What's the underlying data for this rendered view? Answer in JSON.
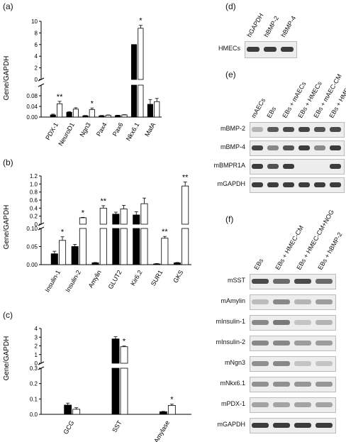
{
  "panel_labels": {
    "a": "(a)",
    "b": "(b)",
    "c": "(c)",
    "d": "(d)",
    "e": "(e)",
    "f": "(f)"
  },
  "chart_data": [
    {
      "type": "bar",
      "panel": "a",
      "ylabel": "Gene/GAPDH",
      "categories": [
        "PDX-1",
        "NeuroD1",
        "Ngn3",
        "Pax4",
        "Pax6",
        "Nkx6.1",
        "MafA"
      ],
      "series": [
        {
          "values": [
            0.008,
            0.018,
            0.005,
            0.005,
            0.006,
            6,
            0.048
          ],
          "errors": [
            0.003,
            0.002,
            0.001,
            0.001,
            0.001,
            0,
            0.018
          ],
          "color": "#000000"
        },
        {
          "values": [
            0.05,
            0.03,
            0.028,
            0.007,
            0.008,
            8.8,
            0.058
          ],
          "errors": [
            0.009,
            0.005,
            0.006,
            0.001,
            0.001,
            0.5,
            0.012
          ],
          "color": "#ffffff"
        }
      ],
      "broken_axis": {
        "lower": [
          0,
          0.12
        ],
        "upper": [
          0,
          10
        ]
      },
      "lower_ticks": [
        "0.00",
        "0.04",
        "0.08"
      ],
      "upper_ticks": [
        "0",
        "2",
        "4",
        "6",
        "8",
        "10"
      ],
      "significance": [
        "**",
        "",
        "*",
        "",
        "",
        "*",
        ""
      ]
    },
    {
      "type": "bar",
      "panel": "b",
      "ylabel": "Gene/GAPDH",
      "categories": [
        "Insulin-1",
        "Insulin-2",
        "Amylin",
        "GLUT2",
        "Kir6.2",
        "SUR1",
        "GKS"
      ],
      "series": [
        {
          "values": [
            0.03,
            0.05,
            0.005,
            0.25,
            0.23,
            0.002,
            0.005
          ],
          "errors": [
            0.007,
            0.006,
            0.001,
            0.05,
            0.08,
            0.001,
            0.001
          ],
          "color": "#000000"
        },
        {
          "values": [
            0.067,
            0.16,
            0.4,
            0.38,
            0.51,
            0.073,
            0.95
          ],
          "errors": [
            0.01,
            0.01,
            0.06,
            0.09,
            0.14,
            0.005,
            0.1
          ],
          "color": "#ffffff"
        }
      ],
      "broken_axis": {
        "lower": [
          0,
          0.1
        ],
        "upper": [
          0,
          1.2
        ]
      },
      "lower_ticks": [
        "0.00",
        "0.05",
        "0.10"
      ],
      "upper_ticks": [
        "0",
        "0.2",
        "0.4",
        "0.6",
        "0.8",
        "1.0",
        "1.2"
      ],
      "significance": [
        "*",
        "*",
        "**",
        "",
        "",
        "**",
        "**"
      ]
    },
    {
      "type": "bar",
      "panel": "c",
      "ylabel": "Gene/GAPDH",
      "categories": [
        "GCG",
        "SST",
        "Amylase"
      ],
      "series": [
        {
          "values": [
            0.06,
            2.8,
            0.017
          ],
          "errors": [
            0.013,
            0.25,
            0.002
          ],
          "color": "#000000"
        },
        {
          "values": [
            0.033,
            1.9,
            0.058
          ],
          "errors": [
            0.01,
            0.08,
            0.008
          ],
          "color": "#ffffff"
        }
      ],
      "broken_axis": {
        "lower": [
          0,
          0.3
        ],
        "upper": [
          0,
          4
        ]
      },
      "lower_ticks": [
        "0.0",
        "0.1",
        "0.2",
        "0.3"
      ],
      "upper_ticks": [
        "0",
        "1",
        "2",
        "3",
        "4"
      ],
      "significance": [
        "",
        "*",
        "*"
      ]
    }
  ],
  "gel_d": {
    "columns": [
      "hGAPDH",
      "hBMP-2",
      "hBMP-4"
    ],
    "rows": [
      {
        "label": "HMECs",
        "bands": [
          1,
          1,
          1
        ]
      }
    ]
  },
  "gel_e": {
    "columns": [
      "mAECs",
      "EBs",
      "EBs + mAECs",
      "EBs + HMECs",
      "EBs + mAEC-CM",
      "EBs + HMEC-CM"
    ],
    "rows": [
      {
        "label": "mBMP-2",
        "bands": [
          0.2,
          0.8,
          0.9,
          0.95,
          0.85,
          0.9
        ]
      },
      {
        "label": "mBMP-4",
        "bands": [
          0.95,
          0.5,
          0.85,
          1,
          0.5,
          1
        ]
      },
      {
        "label": "mBMPR1A",
        "bands": [
          1,
          0.85,
          1,
          0,
          0,
          1
        ]
      },
      {
        "label": "mGAPDH",
        "bands": [
          1,
          1,
          1,
          1,
          1,
          1
        ]
      }
    ]
  },
  "gel_f": {
    "columns": [
      "EBs",
      "EBs + HMEC-CM",
      "EBs + HMEC-CM+NOG",
      "EBs + hBMP-2"
    ],
    "rows": [
      {
        "label": "mSST",
        "bands": [
          0.9,
          0.7,
          0.9,
          0.7
        ]
      },
      {
        "label": "mAmylin",
        "bands": [
          0.15,
          0.5,
          0.2,
          0.35
        ]
      },
      {
        "label": "mInsulin-1",
        "bands": [
          0.5,
          0.6,
          0.1,
          0.2
        ]
      },
      {
        "label": "mInsulin-2",
        "bands": [
          0.5,
          0.5,
          0.35,
          0.35
        ]
      },
      {
        "label": "mNgn3",
        "bands": [
          0.45,
          0.5,
          0.1,
          0.1
        ]
      },
      {
        "label": "mNkx6.1",
        "bands": [
          0.45,
          0.45,
          0.4,
          0.4
        ]
      },
      {
        "label": "mPDX-1",
        "bands": [
          0.3,
          0.3,
          0.3,
          0.3
        ]
      },
      {
        "label": "mGAPDH",
        "bands": [
          1,
          1,
          1,
          1
        ]
      }
    ]
  }
}
